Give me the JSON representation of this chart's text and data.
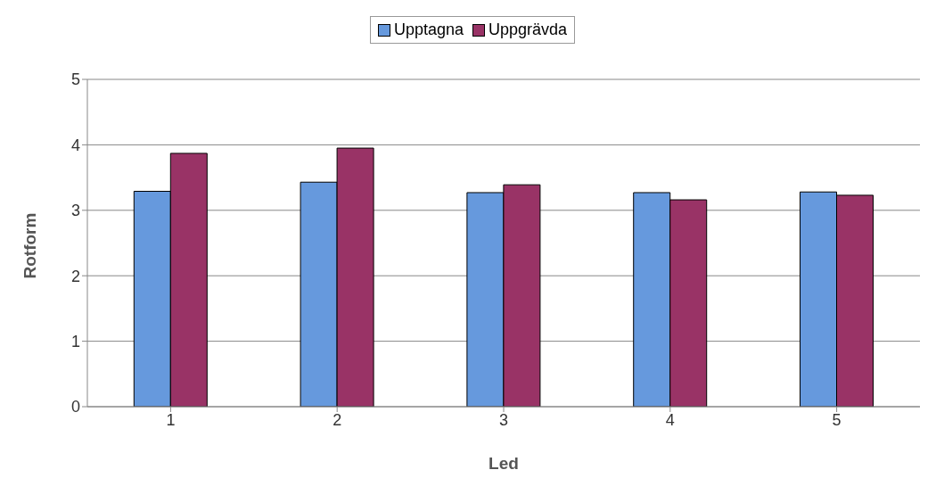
{
  "chart_data": {
    "type": "bar",
    "xlabel": "Led",
    "ylabel": "Rotform",
    "categories": [
      "1",
      "2",
      "3",
      "4",
      "5"
    ],
    "series": [
      {
        "name": "Upptagna",
        "color": "#6699dd",
        "values": [
          3.29,
          3.43,
          3.27,
          3.27,
          3.28
        ]
      },
      {
        "name": "Uppgrävda",
        "color": "#993366",
        "values": [
          3.87,
          3.95,
          3.39,
          3.16,
          3.23
        ]
      }
    ],
    "ylim": [
      0,
      5
    ],
    "yticks": [
      0,
      1,
      2,
      3,
      4,
      5
    ],
    "grid": "y",
    "legend": "top"
  }
}
